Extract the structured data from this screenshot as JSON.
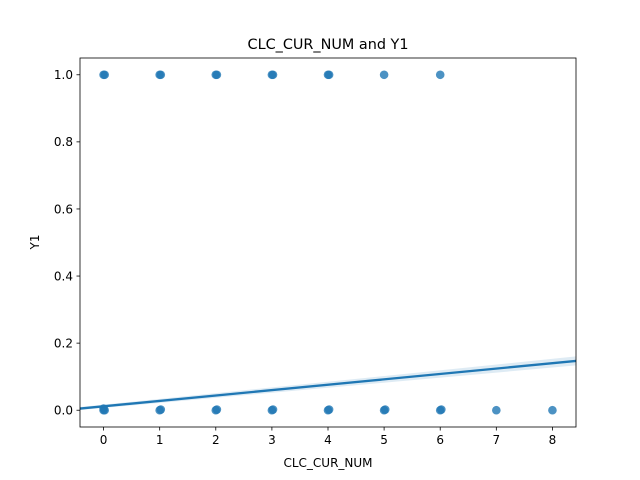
{
  "chart_data": {
    "type": "scatter",
    "title": "CLC_CUR_NUM and Y1",
    "xlabel": "CLC_CUR_NUM",
    "ylabel": "Y1",
    "xlim": [
      -0.42,
      8.42
    ],
    "ylim": [
      -0.05,
      1.05
    ],
    "xticks": [
      "0",
      "1",
      "2",
      "3",
      "4",
      "5",
      "6",
      "7",
      "8"
    ],
    "yticks": [
      "0.0",
      "0.2",
      "0.4",
      "0.6",
      "0.8",
      "1.0"
    ],
    "grid": false,
    "legend": "none",
    "point_color": "#1f77b4",
    "series": [
      {
        "x": [
          0,
          0,
          0.02,
          1,
          1.02,
          2,
          2.02,
          3,
          3.02,
          4,
          4.02,
          5,
          5.02,
          6,
          6.02,
          0,
          0.02,
          1,
          1.02,
          2,
          2.02,
          3,
          3.02,
          4,
          4.02,
          5,
          6,
          7,
          8
        ],
        "y": [
          0,
          0.005,
          0,
          0,
          0.002,
          0,
          0.002,
          0,
          0.002,
          0,
          0.002,
          0,
          0.002,
          0,
          0.002,
          1,
          1,
          1,
          1,
          1,
          1,
          1,
          1,
          1,
          1,
          1,
          1,
          0,
          0
        ]
      }
    ],
    "regression_line": {
      "x": [
        -0.42,
        8.42
      ],
      "y": [
        0.005,
        0.147
      ],
      "color": "#1f77b4"
    }
  }
}
